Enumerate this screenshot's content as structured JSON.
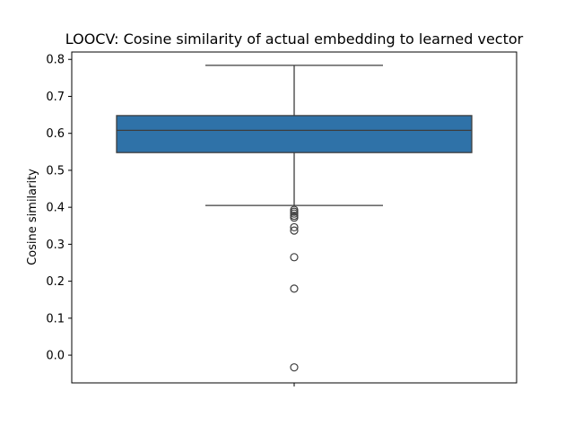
{
  "chart_data": {
    "type": "box",
    "title": "LOOCV: Cosine similarity of actual embedding to learned vector",
    "xlabel": "",
    "ylabel": "Cosine similarity",
    "ylim": [
      -0.075,
      0.82
    ],
    "yticks": [
      0.0,
      0.1,
      0.2,
      0.3,
      0.4,
      0.5,
      0.6,
      0.7,
      0.8
    ],
    "ytick_labels": [
      "0.0",
      "0.1",
      "0.2",
      "0.3",
      "0.4",
      "0.5",
      "0.6",
      "0.7",
      "0.8"
    ],
    "grid": false,
    "legend": "none",
    "box": {
      "whisker_low": 0.405,
      "q1": 0.548,
      "median": 0.608,
      "q3": 0.648,
      "whisker_high": 0.784
    },
    "outliers": [
      0.393,
      0.388,
      0.383,
      0.377,
      0.372,
      0.346,
      0.337,
      0.265,
      0.18,
      -0.033
    ],
    "colors": {
      "box_fill": "#2f72a8",
      "line": "#3d3d3d",
      "axis": "#000000"
    }
  }
}
